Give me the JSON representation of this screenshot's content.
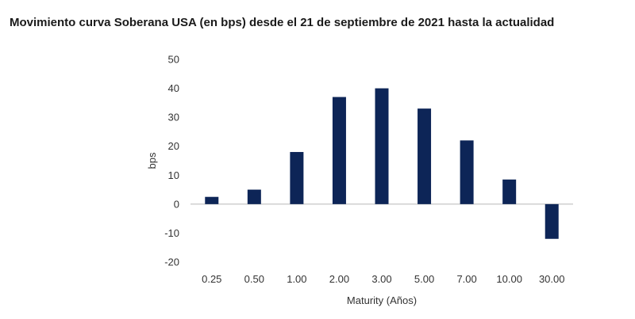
{
  "title": "Movimiento curva Soberana USA (en bps) desde el 21 de septiembre de 2021 hasta la actualidad",
  "chart_data": {
    "type": "bar",
    "title": "Movimiento curva Soberana USA (en bps) desde el 21 de septiembre de 2021 hasta la actualidad",
    "categories": [
      "0.25",
      "0.50",
      "1.00",
      "2.00",
      "3.00",
      "5.00",
      "7.00",
      "10.00",
      "30.00"
    ],
    "values": [
      2.5,
      5,
      18,
      37,
      40,
      33,
      22,
      8.5,
      -12
    ],
    "xlabel": "Maturity (Años)",
    "ylabel": "bps",
    "ylim": [
      -20,
      50
    ],
    "yticks": [
      "50",
      "40",
      "30",
      "20",
      "10",
      "0",
      "-10",
      "-20"
    ],
    "grid": false,
    "legend": "none",
    "bar_color": "#0d2557",
    "axis_color": "#b8b8b8"
  }
}
